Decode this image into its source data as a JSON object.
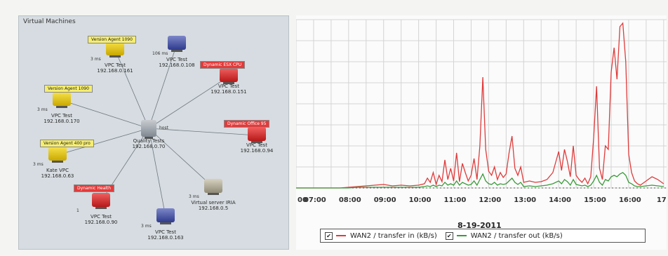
{
  "vm_panel": {
    "title": "Virtual Machines",
    "center": {
      "name": "Quality Tests",
      "ip": "192.168.0.70",
      "mini": "host"
    },
    "nodes": [
      {
        "name": "VPC Test",
        "ip": "192.168.0.161",
        "mini": "3 ms",
        "tag": "Version Agent 1090",
        "tag_style": "yellow"
      },
      {
        "name": "VPC Test",
        "ip": "192.168.0.108",
        "mini": "106 ms",
        "tag": "",
        "tag_style": ""
      },
      {
        "name": "VPC Test",
        "ip": "192.168.0.151",
        "mini": "",
        "tag": "Dynamic ESX CPU",
        "tag_style": "red"
      },
      {
        "name": "VPC Test",
        "ip": "192.168.0.170",
        "mini": "3 ms",
        "tag": "Version Agent 1090",
        "tag_style": "yellow"
      },
      {
        "name": "VPC Test",
        "ip": "192.168.0.94",
        "mini": "",
        "tag": "Dynamic Office 95",
        "tag_style": "red"
      },
      {
        "name": "Kate VPC",
        "ip": "192.168.0.63",
        "mini": "3 ms",
        "tag": "Version Agent 400 pro",
        "tag_style": "yellow"
      },
      {
        "name": "VPC Test",
        "ip": "192.168.0.90",
        "mini": "1",
        "tag": "Dynamic Health",
        "tag_style": "red"
      },
      {
        "name": "VPC Test",
        "ip": "192.168.0.163",
        "mini": "3 ms",
        "tag": "",
        "tag_style": ""
      },
      {
        "name": "Virtual server IRIA",
        "ip": "192.168.0.5",
        "mini": "3 ms",
        "tag": "",
        "tag_style": ""
      }
    ]
  },
  "chart_data": {
    "type": "line",
    "x": [
      "06:30",
      "06:45",
      "07:00",
      "07:15",
      "07:30",
      "07:45",
      "08:00",
      "08:15",
      "08:30",
      "08:45",
      "09:00",
      "09:15",
      "09:30",
      "09:45",
      "10:00",
      "10:10",
      "10:15",
      "10:20",
      "10:25",
      "10:30",
      "10:35",
      "10:40",
      "10:45",
      "10:50",
      "10:55",
      "11:00",
      "11:05",
      "11:10",
      "11:15",
      "11:20",
      "11:25",
      "11:30",
      "11:35",
      "11:40",
      "11:45",
      "11:50",
      "11:55",
      "12:00",
      "12:05",
      "12:10",
      "12:15",
      "12:20",
      "12:25",
      "12:30",
      "12:35",
      "12:40",
      "12:45",
      "12:50",
      "12:55",
      "13:00",
      "13:10",
      "13:20",
      "13:30",
      "13:40",
      "13:50",
      "14:00",
      "14:05",
      "14:10",
      "14:15",
      "14:20",
      "14:25",
      "14:30",
      "14:35",
      "14:40",
      "14:45",
      "14:50",
      "14:55",
      "15:00",
      "15:05",
      "15:10",
      "15:15",
      "15:20",
      "15:25",
      "15:30",
      "15:35",
      "15:40",
      "15:45",
      "15:50",
      "15:55",
      "16:00",
      "16:05",
      "16:10",
      "16:15",
      "16:20",
      "16:30",
      "16:40",
      "16:50",
      "17:00"
    ],
    "series": [
      {
        "name": "WAN2 / transfer in (kB/s)",
        "color": "#e03a3a",
        "values": [
          0,
          0,
          0,
          0,
          0,
          0,
          1,
          2,
          3,
          4,
          5,
          3,
          4,
          3,
          4,
          6,
          14,
          8,
          22,
          5,
          18,
          9,
          40,
          12,
          28,
          10,
          50,
          9,
          35,
          22,
          10,
          18,
          42,
          12,
          60,
          158,
          55,
          24,
          18,
          30,
          12,
          22,
          15,
          20,
          50,
          74,
          28,
          18,
          30,
          8,
          10,
          8,
          9,
          12,
          22,
          52,
          25,
          55,
          38,
          16,
          60,
          18,
          12,
          8,
          14,
          6,
          16,
          72,
          145,
          28,
          12,
          60,
          55,
          165,
          200,
          155,
          230,
          235,
          180,
          48,
          22,
          10,
          6,
          4,
          10,
          16,
          12,
          6
        ]
      },
      {
        "name": "WAN2 / transfer out (kB/s)",
        "color": "#3a9a3a",
        "values": [
          0,
          0,
          0,
          0,
          0,
          0,
          0,
          1,
          1,
          1,
          1,
          1,
          1,
          1,
          1,
          2,
          3,
          2,
          4,
          2,
          4,
          3,
          8,
          4,
          6,
          4,
          10,
          4,
          8,
          6,
          4,
          5,
          10,
          4,
          12,
          20,
          10,
          6,
          5,
          8,
          4,
          6,
          5,
          6,
          10,
          14,
          8,
          5,
          8,
          2,
          3,
          2,
          3,
          4,
          6,
          10,
          6,
          12,
          9,
          4,
          12,
          5,
          4,
          3,
          4,
          2,
          4,
          10,
          18,
          8,
          4,
          12,
          10,
          16,
          18,
          16,
          20,
          22,
          18,
          8,
          6,
          3,
          2,
          2,
          3,
          4,
          3,
          2
        ]
      }
    ],
    "x_ticks": [
      "00",
      "07:00",
      "08:00",
      "09:00",
      "10:00",
      "11:00",
      "12:00",
      "13:00",
      "14:00",
      "15:00",
      "16:00",
      "17:"
    ],
    "xlabel": "8-19-2011",
    "ylim": [
      0,
      240
    ],
    "grid": true,
    "legend_position": "bottom"
  },
  "legend": {
    "check_mark": "✔",
    "in_label": "WAN2 / transfer in (kB/s)",
    "out_label": "WAN2 / transfer out (kB/s)"
  }
}
